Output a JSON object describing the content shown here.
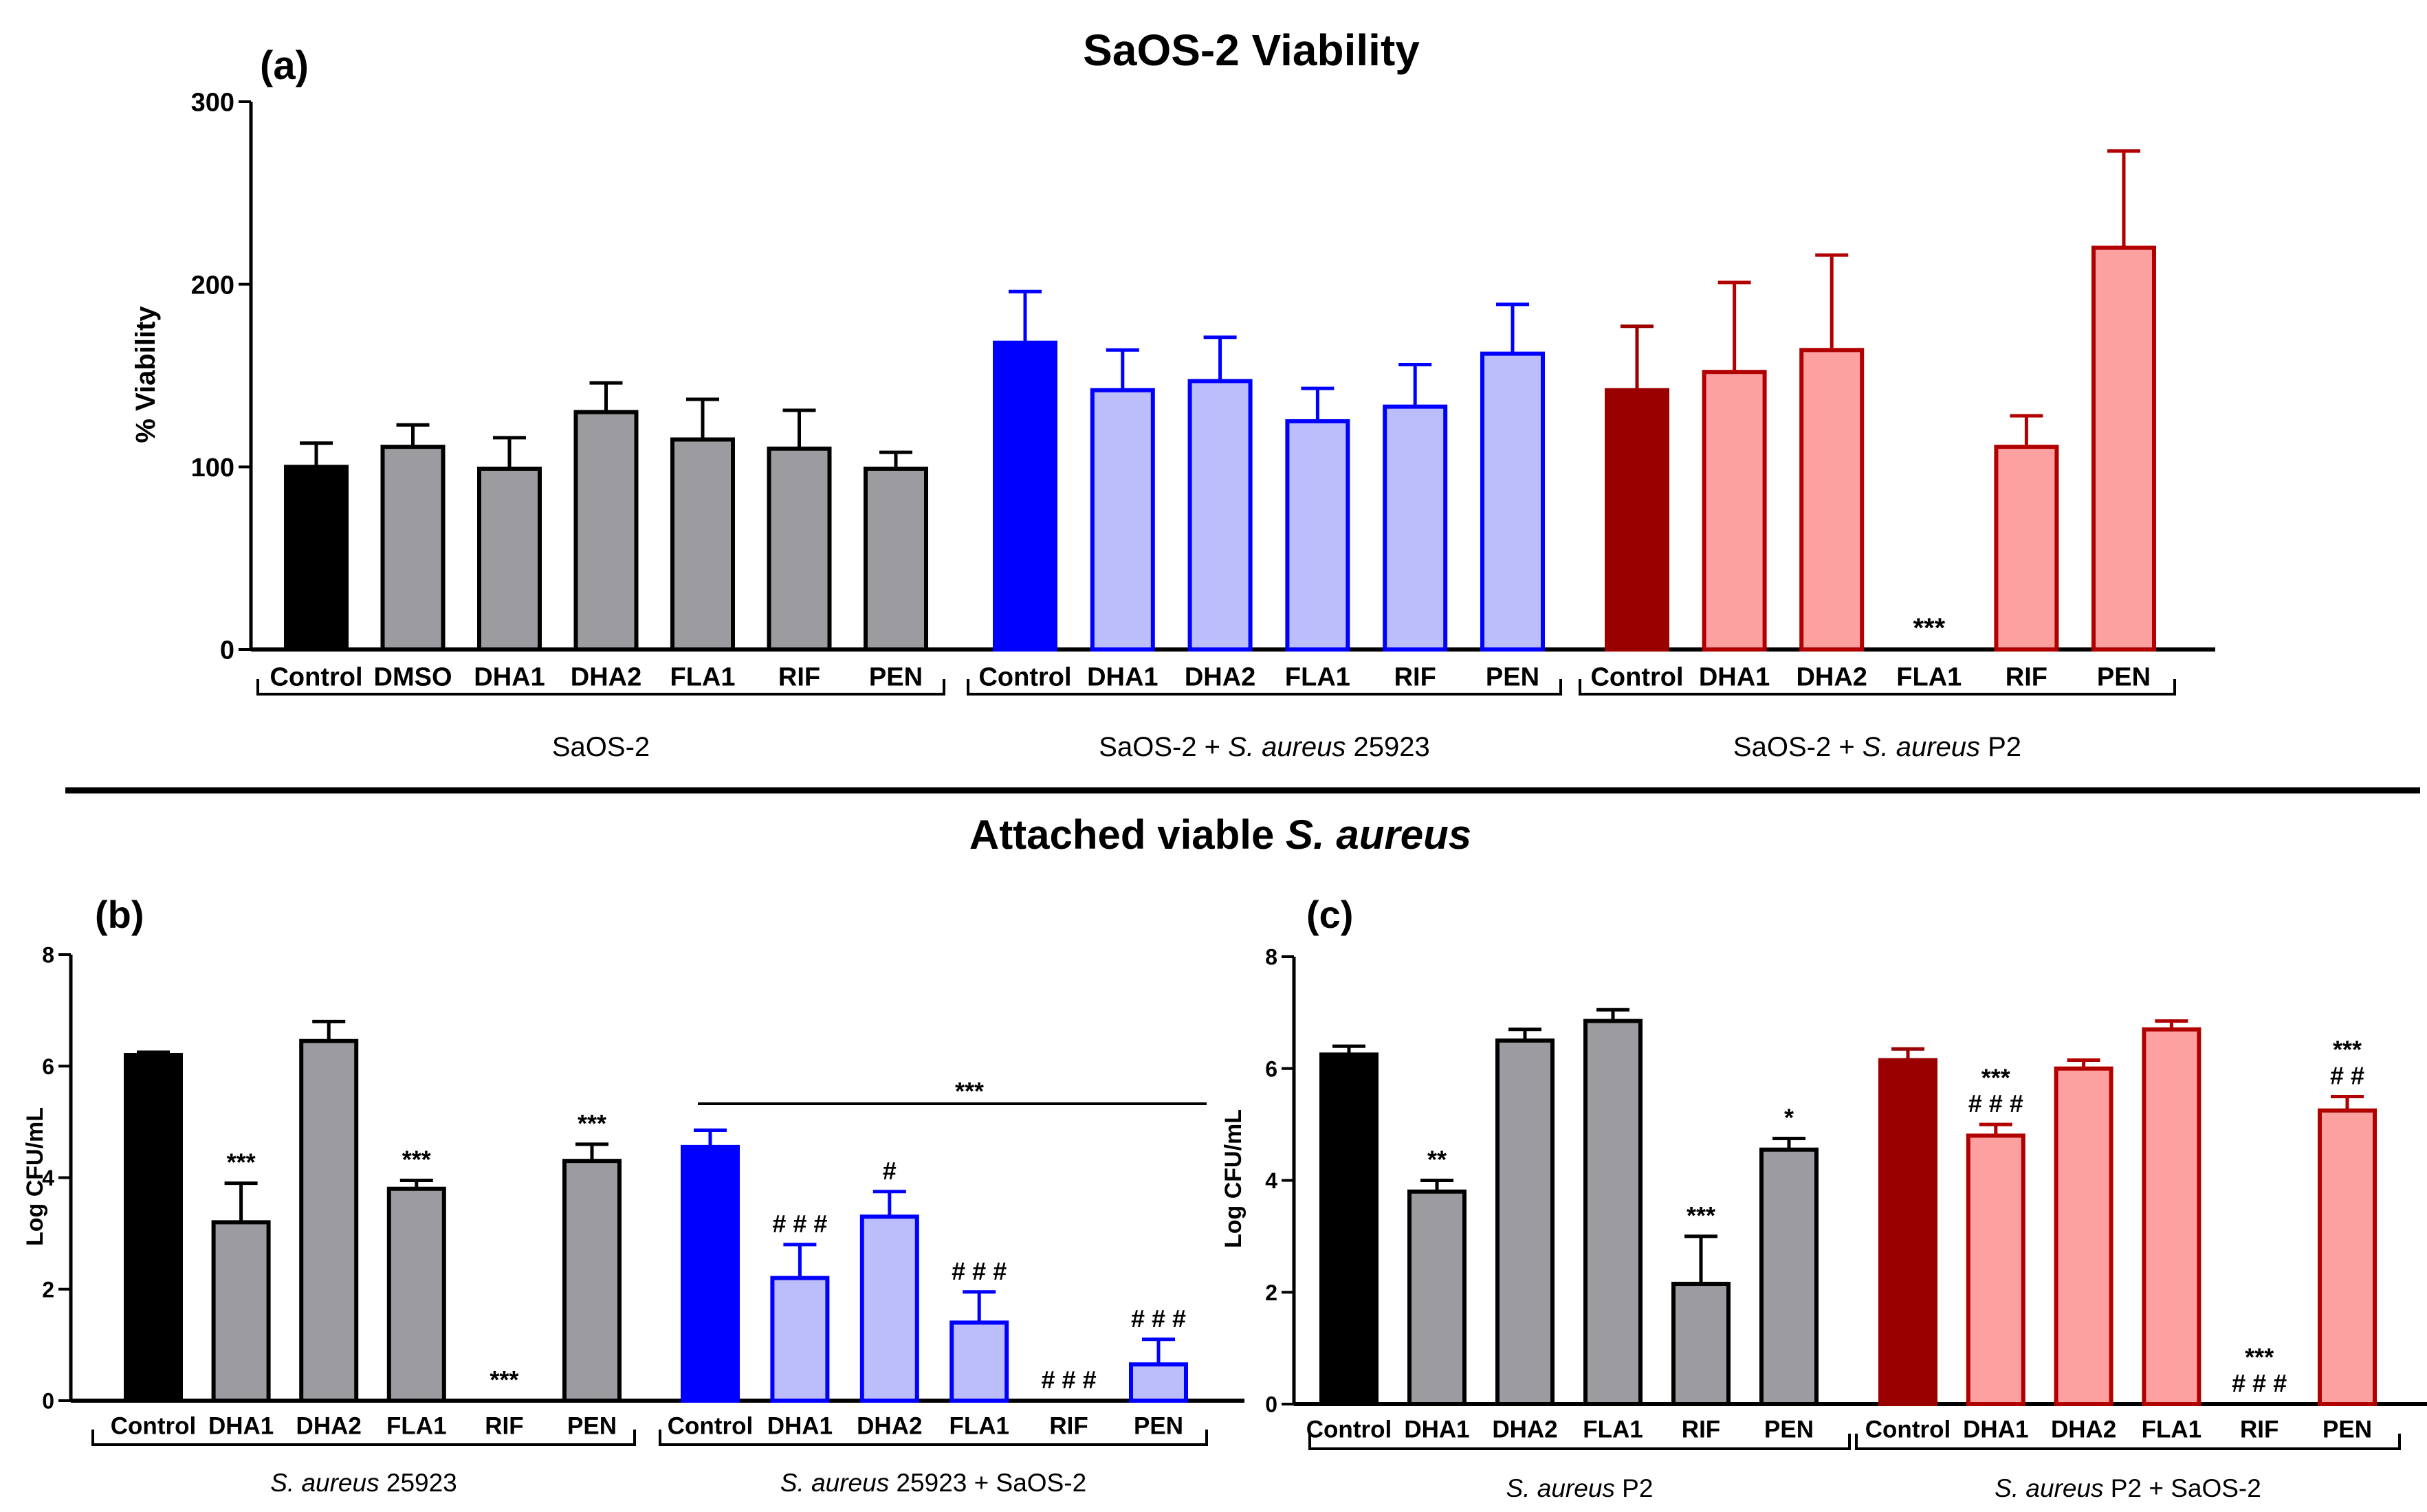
{
  "figure": {
    "section_title_attached": "Attached viable",
    "section_title_species": "S. aureus"
  },
  "chart_data": [
    {
      "id": "a",
      "panel_label": "(a)",
      "type": "bar",
      "title": "SaOS-2 Viability",
      "ylabel": "% Viability",
      "ylim": [
        0,
        300
      ],
      "yticks": [
        0,
        100,
        200,
        300
      ],
      "groups": [
        {
          "label": "SaOS-2",
          "label_parts": [
            "SaOS-2"
          ],
          "italic_parts": [
            false
          ],
          "bars": [
            {
              "category": "Control",
              "value": 100,
              "error": 13,
              "fill": "#000000",
              "stroke": "#000000",
              "annotation": ""
            },
            {
              "category": "DMSO",
              "value": 111,
              "error": 12,
              "fill": "#9c9ca0",
              "stroke": "#000000",
              "annotation": ""
            },
            {
              "category": "DHA1",
              "value": 99,
              "error": 17,
              "fill": "#9c9ca0",
              "stroke": "#000000",
              "annotation": ""
            },
            {
              "category": "DHA2",
              "value": 130,
              "error": 16,
              "fill": "#9c9ca0",
              "stroke": "#000000",
              "annotation": ""
            },
            {
              "category": "FLA1",
              "value": 115,
              "error": 22,
              "fill": "#9c9ca0",
              "stroke": "#000000",
              "annotation": ""
            },
            {
              "category": "RIF",
              "value": 110,
              "error": 21,
              "fill": "#9c9ca0",
              "stroke": "#000000",
              "annotation": ""
            },
            {
              "category": "PEN",
              "value": 99,
              "error": 9,
              "fill": "#9c9ca0",
              "stroke": "#000000",
              "annotation": ""
            }
          ]
        },
        {
          "label": "SaOS-2 + S. aureus 25923",
          "label_parts": [
            "SaOS-2 + ",
            "S. aureus",
            " 25923"
          ],
          "italic_parts": [
            false,
            true,
            false
          ],
          "bars": [
            {
              "category": "Control",
              "value": 168,
              "error": 28,
              "fill": "#0000ff",
              "stroke": "#0000ff",
              "annotation": ""
            },
            {
              "category": "DHA1",
              "value": 142,
              "error": 22,
              "fill": "#bcbdfb",
              "stroke": "#0000ff",
              "annotation": ""
            },
            {
              "category": "DHA2",
              "value": 147,
              "error": 24,
              "fill": "#bcbdfb",
              "stroke": "#0000ff",
              "annotation": ""
            },
            {
              "category": "FLA1",
              "value": 125,
              "error": 18,
              "fill": "#bcbdfb",
              "stroke": "#0000ff",
              "annotation": ""
            },
            {
              "category": "RIF",
              "value": 133,
              "error": 23,
              "fill": "#bcbdfb",
              "stroke": "#0000ff",
              "annotation": ""
            },
            {
              "category": "PEN",
              "value": 162,
              "error": 27,
              "fill": "#bcbdfb",
              "stroke": "#0000ff",
              "annotation": ""
            }
          ]
        },
        {
          "label": "SaOS-2 + S. aureus P2",
          "label_parts": [
            "SaOS-2 + ",
            "S. aureus",
            " P2"
          ],
          "italic_parts": [
            false,
            true,
            false
          ],
          "bars": [
            {
              "category": "Control",
              "value": 142,
              "error": 35,
              "fill": "#9b0000",
              "stroke": "#9b0000",
              "annotation": ""
            },
            {
              "category": "DHA1",
              "value": 152,
              "error": 49,
              "fill": "#fca0a0",
              "stroke": "#b00000",
              "annotation": ""
            },
            {
              "category": "DHA2",
              "value": 164,
              "error": 52,
              "fill": "#fca0a0",
              "stroke": "#b00000",
              "annotation": ""
            },
            {
              "category": "FLA1",
              "value": 0,
              "error": 0,
              "fill": "#fca0a0",
              "stroke": "#b00000",
              "annotation": "***"
            },
            {
              "category": "RIF",
              "value": 111,
              "error": 17,
              "fill": "#fca0a0",
              "stroke": "#b00000",
              "annotation": ""
            },
            {
              "category": "PEN",
              "value": 220,
              "error": 53,
              "fill": "#fca0a0",
              "stroke": "#b00000",
              "annotation": ""
            }
          ]
        }
      ]
    },
    {
      "id": "b",
      "panel_label": "(b)",
      "type": "bar",
      "title": "",
      "ylabel": "Log CFU/mL",
      "ylim": [
        0,
        8
      ],
      "yticks": [
        0,
        2,
        4,
        6,
        8
      ],
      "bracket_annotation": "***",
      "groups": [
        {
          "label": "S. aureus 25923",
          "label_parts": [
            "S. aureus",
            " 25923"
          ],
          "italic_parts": [
            true,
            false
          ],
          "bars": [
            {
              "category": "Control",
              "value": 6.2,
              "error": 0.05,
              "fill": "#000000",
              "stroke": "#000000",
              "annotation": ""
            },
            {
              "category": "DHA1",
              "value": 3.2,
              "error": 0.7,
              "fill": "#9c9ca0",
              "stroke": "#000000",
              "annotation": "***"
            },
            {
              "category": "DHA2",
              "value": 6.45,
              "error": 0.35,
              "fill": "#9c9ca0",
              "stroke": "#000000",
              "annotation": ""
            },
            {
              "category": "FLA1",
              "value": 3.8,
              "error": 0.15,
              "fill": "#9c9ca0",
              "stroke": "#000000",
              "annotation": "***"
            },
            {
              "category": "RIF",
              "value": 0,
              "error": 0,
              "fill": "#9c9ca0",
              "stroke": "#000000",
              "annotation": "***"
            },
            {
              "category": "PEN",
              "value": 4.3,
              "error": 0.3,
              "fill": "#9c9ca0",
              "stroke": "#000000",
              "annotation": "***"
            }
          ]
        },
        {
          "label": "S. aureus 25923 + SaOS-2",
          "label_parts": [
            "S. aureus",
            " 25923 + SaOS-2"
          ],
          "italic_parts": [
            true,
            false
          ],
          "bars": [
            {
              "category": "Control",
              "value": 4.55,
              "error": 0.3,
              "fill": "#0000ff",
              "stroke": "#0000ff",
              "annotation": ""
            },
            {
              "category": "DHA1",
              "value": 2.2,
              "error": 0.6,
              "fill": "#bcbdfb",
              "stroke": "#0000ff",
              "annotation": "# # #"
            },
            {
              "category": "DHA2",
              "value": 3.3,
              "error": 0.45,
              "fill": "#bcbdfb",
              "stroke": "#0000ff",
              "annotation": "#"
            },
            {
              "category": "FLA1",
              "value": 1.4,
              "error": 0.55,
              "fill": "#bcbdfb",
              "stroke": "#0000ff",
              "annotation": "# # #"
            },
            {
              "category": "RIF",
              "value": 0,
              "error": 0,
              "fill": "#bcbdfb",
              "stroke": "#0000ff",
              "annotation": "# # #"
            },
            {
              "category": "PEN",
              "value": 0.65,
              "error": 0.45,
              "fill": "#bcbdfb",
              "stroke": "#0000ff",
              "annotation": "# # #"
            }
          ]
        }
      ]
    },
    {
      "id": "c",
      "panel_label": "(c)",
      "type": "bar",
      "title": "",
      "ylabel": "Log CFU/mL",
      "ylim": [
        0,
        8
      ],
      "yticks": [
        0,
        2,
        4,
        6,
        8
      ],
      "groups": [
        {
          "label": "S. aureus P2",
          "label_parts": [
            "S. aureus",
            " P2"
          ],
          "italic_parts": [
            true,
            false
          ],
          "bars": [
            {
              "category": "Control",
              "value": 6.25,
              "error": 0.15,
              "fill": "#000000",
              "stroke": "#000000",
              "annotation": ""
            },
            {
              "category": "DHA1",
              "value": 3.8,
              "error": 0.2,
              "fill": "#9c9ca0",
              "stroke": "#000000",
              "annotation": "**"
            },
            {
              "category": "DHA2",
              "value": 6.5,
              "error": 0.2,
              "fill": "#9c9ca0",
              "stroke": "#000000",
              "annotation": ""
            },
            {
              "category": "FLA1",
              "value": 6.85,
              "error": 0.2,
              "fill": "#9c9ca0",
              "stroke": "#000000",
              "annotation": ""
            },
            {
              "category": "RIF",
              "value": 2.15,
              "error": 0.85,
              "fill": "#9c9ca0",
              "stroke": "#000000",
              "annotation": "***"
            },
            {
              "category": "PEN",
              "value": 4.55,
              "error": 0.2,
              "fill": "#9c9ca0",
              "stroke": "#000000",
              "annotation": "*"
            }
          ]
        },
        {
          "label": "S. aureus P2 + SaOS-2",
          "label_parts": [
            "S. aureus",
            " P2 + SaOS-2"
          ],
          "italic_parts": [
            true,
            false
          ],
          "bars": [
            {
              "category": "Control",
              "value": 6.15,
              "error": 0.2,
              "fill": "#9b0000",
              "stroke": "#9b0000",
              "annotation": ""
            },
            {
              "category": "DHA1",
              "value": 4.8,
              "error": 0.2,
              "fill": "#fca0a0",
              "stroke": "#b00000",
              "annotation": "***\n# # #"
            },
            {
              "category": "DHA2",
              "value": 6.0,
              "error": 0.15,
              "fill": "#fca0a0",
              "stroke": "#b00000",
              "annotation": ""
            },
            {
              "category": "FLA1",
              "value": 6.7,
              "error": 0.15,
              "fill": "#fca0a0",
              "stroke": "#b00000",
              "annotation": ""
            },
            {
              "category": "RIF",
              "value": 0,
              "error": 0,
              "fill": "#fca0a0",
              "stroke": "#b00000",
              "annotation": "***\n# # #"
            },
            {
              "category": "PEN",
              "value": 5.25,
              "error": 0.25,
              "fill": "#fca0a0",
              "stroke": "#b00000",
              "annotation": "***\n# #"
            }
          ]
        }
      ]
    }
  ]
}
